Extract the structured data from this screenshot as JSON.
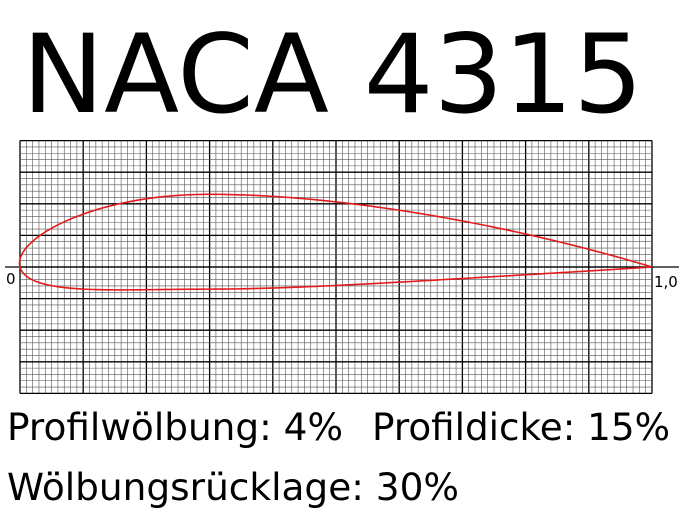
{
  "title": "NACA 4315",
  "profile": {
    "camber_percent": 4,
    "camber_position_percent": 30,
    "thickness_percent": 15
  },
  "axis": {
    "start_label": "0",
    "end_label": "1,0"
  },
  "captions": {
    "camber": "Profilwölbung: 4%",
    "thickness": "Profildicke: 15%",
    "camber_position": "Wölbungsrücklage: 30%"
  },
  "colors": {
    "profile": "#e31b1b",
    "grid_major": "#000000",
    "grid_minor": "#555555"
  }
}
